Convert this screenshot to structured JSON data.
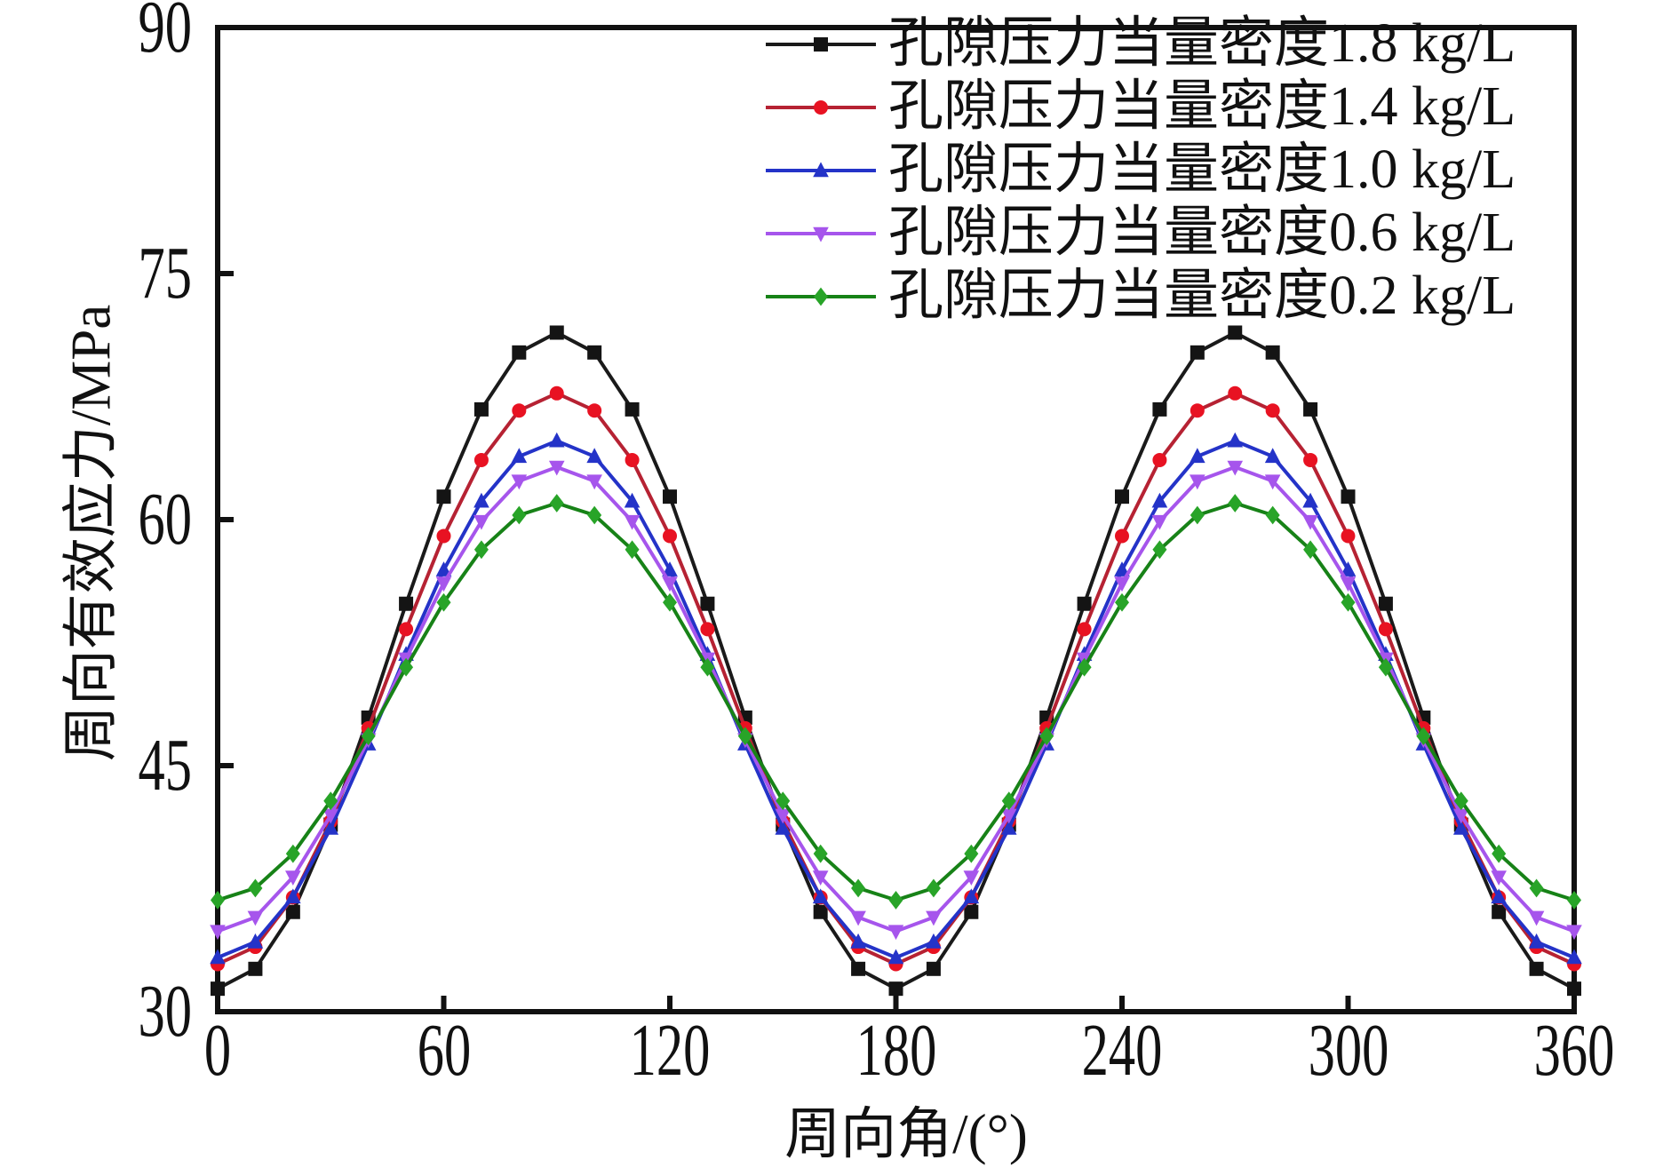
{
  "figure": {
    "background": "#ffffff",
    "frame_color": "#111111"
  },
  "axes": {
    "x": {
      "label": "周向角/(°)",
      "ticks": [
        "0",
        "60",
        "120",
        "180",
        "240",
        "300",
        "360"
      ]
    },
    "y": {
      "label": "周向有效应力/MPa",
      "ticks": [
        "30",
        "45",
        "60",
        "75",
        "90"
      ]
    }
  },
  "chart_data": {
    "type": "line",
    "title": "",
    "xlabel": "周向角/(°)",
    "ylabel": "周向有效应力/MPa",
    "xlim": [
      0,
      360
    ],
    "ylim": [
      30,
      90
    ],
    "x_ticks": [
      0,
      60,
      120,
      180,
      240,
      300,
      360
    ],
    "y_ticks": [
      30,
      45,
      60,
      75,
      90
    ],
    "grid": false,
    "legend_position": "top-right",
    "x": [
      0,
      10,
      20,
      30,
      40,
      50,
      60,
      70,
      80,
      90,
      100,
      110,
      120,
      130,
      140,
      150,
      160,
      170,
      180,
      190,
      200,
      210,
      220,
      230,
      240,
      250,
      260,
      270,
      280,
      290,
      300,
      310,
      320,
      330,
      340,
      350,
      360
    ],
    "series": [
      {
        "name": "孔隙压力当量密度1.8 kg/L",
        "line_color": "#1a1a1a",
        "marker_color": "#141414",
        "marker": "square",
        "values": [
          31.4,
          32.61,
          36.08,
          41.4,
          47.93,
          54.87,
          61.4,
          66.72,
          70.19,
          71.4,
          70.19,
          66.72,
          61.4,
          54.87,
          47.93,
          41.4,
          36.08,
          32.61,
          31.4,
          32.61,
          36.08,
          41.4,
          47.93,
          54.87,
          61.4,
          66.72,
          70.19,
          71.4,
          70.19,
          66.72,
          61.4,
          54.87,
          47.93,
          41.4,
          36.08,
          32.61,
          31.4
        ]
      },
      {
        "name": "孔隙压力当量密度1.4 kg/L",
        "line_color": "#b62233",
        "marker_color": "#e81222",
        "marker": "circle",
        "values": [
          32.9,
          33.95,
          36.97,
          41.6,
          47.28,
          53.32,
          59.0,
          63.63,
          66.65,
          67.7,
          66.65,
          63.63,
          59.0,
          53.32,
          47.28,
          41.6,
          36.97,
          33.95,
          32.9,
          33.95,
          36.97,
          41.6,
          47.28,
          53.32,
          59.0,
          63.63,
          66.65,
          67.7,
          66.65,
          63.63,
          59.0,
          53.32,
          47.28,
          41.6,
          36.97,
          33.95,
          32.9
        ]
      },
      {
        "name": "孔隙压力当量密度1.0 kg/L",
        "line_color": "#2433c8",
        "marker_color": "#2433c8",
        "marker": "triangle-up",
        "values": [
          33.3,
          34.25,
          36.99,
          41.18,
          46.32,
          51.78,
          56.93,
          61.12,
          63.85,
          64.8,
          63.85,
          61.12,
          56.93,
          51.78,
          46.32,
          41.18,
          36.99,
          34.25,
          33.3,
          34.25,
          36.99,
          41.18,
          46.32,
          51.78,
          56.93,
          61.12,
          63.85,
          64.8,
          63.85,
          61.12,
          56.93,
          51.78,
          46.32,
          41.18,
          36.99,
          34.25,
          33.3
        ]
      },
      {
        "name": "孔隙压力当量密度0.6 kg/L",
        "line_color": "#a655ec",
        "marker_color": "#a655ec",
        "marker": "triangle-down",
        "values": [
          34.9,
          35.75,
          38.21,
          41.98,
          46.59,
          51.51,
          56.13,
          59.89,
          62.35,
          63.2,
          62.35,
          59.89,
          56.13,
          51.51,
          46.59,
          41.98,
          38.21,
          35.75,
          34.9,
          35.75,
          38.21,
          41.98,
          46.59,
          51.51,
          56.13,
          59.89,
          62.35,
          63.2,
          62.35,
          59.89,
          56.13,
          51.51,
          46.59,
          41.98,
          38.21,
          35.75,
          34.9
        ]
      },
      {
        "name": "孔隙压力当量密度0.2 kg/L",
        "line_color": "#178217",
        "marker_color": "#28a428",
        "marker": "diamond",
        "values": [
          36.8,
          37.53,
          39.63,
          42.85,
          46.8,
          51.0,
          54.95,
          58.17,
          60.27,
          61.0,
          60.27,
          58.17,
          54.95,
          51.0,
          46.8,
          42.85,
          39.63,
          37.53,
          36.8,
          37.53,
          39.63,
          42.85,
          46.8,
          51.0,
          54.95,
          58.17,
          60.27,
          61.0,
          60.27,
          58.17,
          54.95,
          51.0,
          46.8,
          42.85,
          39.63,
          37.53,
          36.8
        ]
      }
    ]
  }
}
